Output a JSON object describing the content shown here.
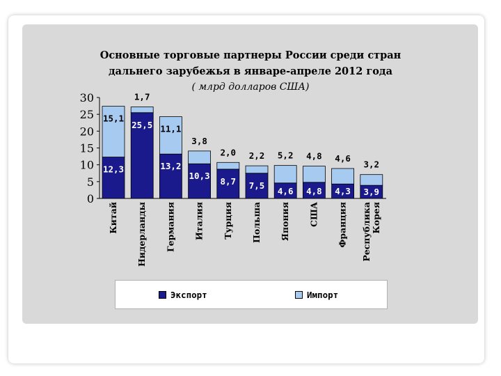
{
  "chart_data": {
    "type": "bar",
    "stacked": true,
    "title_line1": "Основные торговые партнеры России среди стран",
    "title_line2": "дальнего зарубежья в январе-апреле 2012 года",
    "subtitle": "( млрд долларов США)",
    "ylim": [
      0,
      30
    ],
    "yticks": [
      "0",
      "5",
      "10",
      "15",
      "20",
      "25",
      "30"
    ],
    "categories": [
      "Китай",
      "Нидерланды",
      "Германия",
      "Италия",
      "Турция",
      "Польша",
      "Япония",
      "США",
      "Франция",
      "Республика Корея"
    ],
    "category_lines": [
      [
        "Китай"
      ],
      [
        "Нидерланды"
      ],
      [
        "Германия"
      ],
      [
        "Италия"
      ],
      [
        "Турция"
      ],
      [
        "Польша"
      ],
      [
        "Япония"
      ],
      [
        "США"
      ],
      [
        "Франция"
      ],
      [
        "Республика",
        "Корея"
      ]
    ],
    "series": [
      {
        "name": "Экспорт",
        "color": "#1a1a8c",
        "values": [
          12.3,
          25.5,
          13.2,
          10.3,
          8.7,
          7.5,
          4.6,
          4.8,
          4.3,
          3.9
        ],
        "labels": [
          "12,3",
          "25,5",
          "13,2",
          "10,3",
          "8,7",
          "7,5",
          "4,6",
          "4,8",
          "4,3",
          "3,9"
        ]
      },
      {
        "name": "Импорт",
        "color": "#a6caf0",
        "values": [
          15.1,
          1.7,
          11.1,
          3.8,
          2.0,
          2.2,
          5.2,
          4.8,
          4.6,
          3.2
        ],
        "labels": [
          "15,1",
          "1,7",
          "11,1",
          "3,8",
          "2,0",
          "2,2",
          "5,2",
          "4,8",
          "4,6",
          "3,2"
        ]
      }
    ],
    "legend_position": "bottom",
    "grid": false
  }
}
